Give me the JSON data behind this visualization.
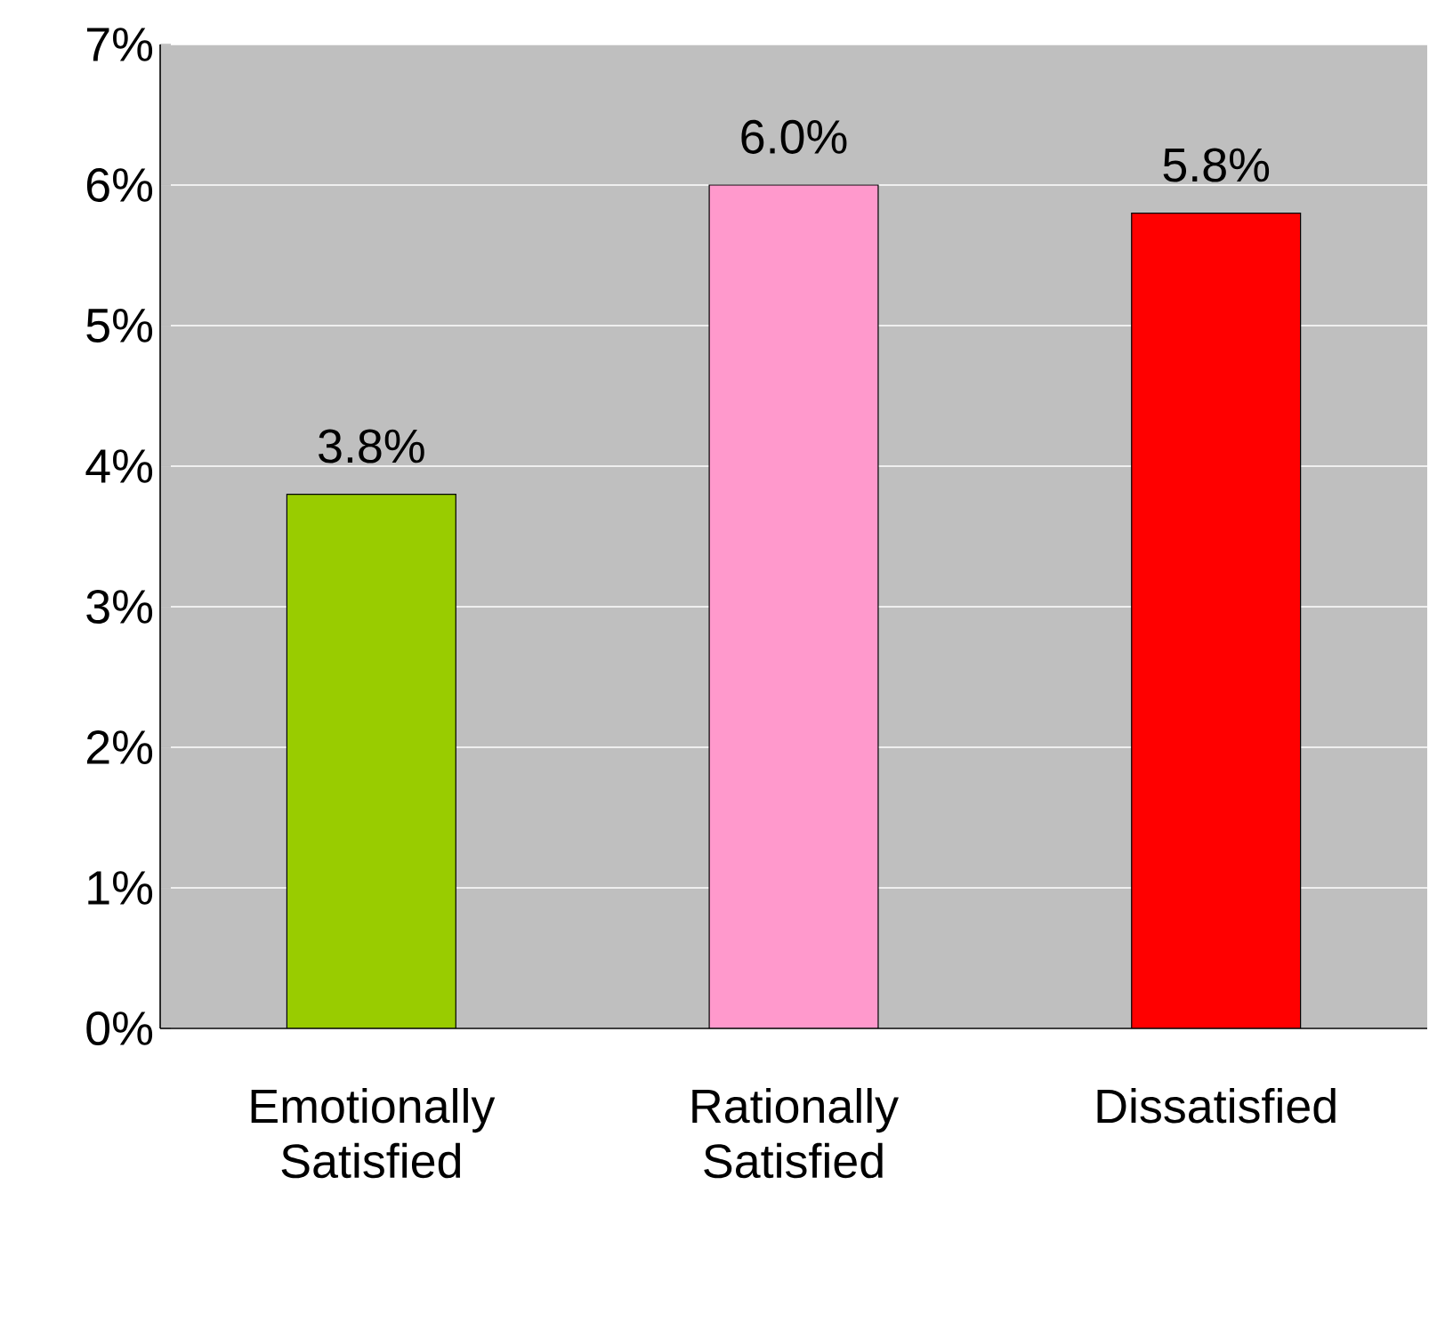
{
  "chart_data": {
    "type": "bar",
    "categories": [
      "Emotionally Satisfied",
      "Rationally Satisfied",
      "Dissatisfied"
    ],
    "values": [
      3.8,
      6.0,
      5.8
    ],
    "colors": [
      "#99cc00",
      "#ff99cc",
      "#ff0000"
    ],
    "value_labels": [
      "3.8%",
      "6.0%",
      "5.8%"
    ],
    "ylim": [
      0,
      7
    ],
    "yticks": [
      {
        "value": 0,
        "label": "0%"
      },
      {
        "value": 1,
        "label": "1%"
      },
      {
        "value": 2,
        "label": "2%"
      },
      {
        "value": 3,
        "label": "3%"
      },
      {
        "value": 4,
        "label": "4%"
      },
      {
        "value": 5,
        "label": "5%"
      },
      {
        "value": 6,
        "label": "6%"
      },
      {
        "value": 7,
        "label": "7%"
      }
    ],
    "grid": "y"
  }
}
